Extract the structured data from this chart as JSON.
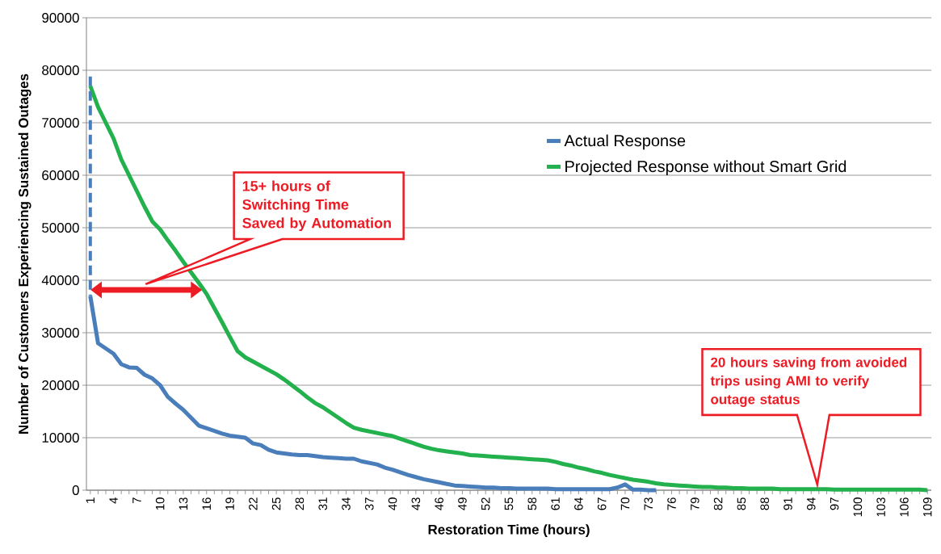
{
  "chart_data": {
    "type": "line",
    "xlabel": "Restoration Time (hours)",
    "ylabel": "Number of Customers Experiencing Sustained Outages",
    "x": [
      1,
      2,
      3,
      4,
      5,
      6,
      7,
      8,
      9,
      10,
      11,
      12,
      13,
      14,
      15,
      16,
      17,
      18,
      19,
      20,
      21,
      22,
      23,
      24,
      25,
      26,
      27,
      28,
      29,
      30,
      31,
      32,
      33,
      34,
      35,
      36,
      37,
      38,
      39,
      40,
      41,
      42,
      43,
      44,
      45,
      46,
      47,
      48,
      49,
      50,
      51,
      52,
      53,
      54,
      55,
      56,
      57,
      58,
      59,
      60,
      61,
      62,
      63,
      64,
      65,
      66,
      67,
      68,
      69,
      70,
      71,
      72,
      73,
      74,
      75,
      76,
      77,
      78,
      79,
      80,
      81,
      82,
      83,
      84,
      85,
      86,
      87,
      88,
      89,
      90,
      91,
      92,
      93,
      94,
      95,
      96,
      97,
      98,
      99,
      100,
      101,
      102,
      103,
      104,
      105,
      106,
      107,
      108,
      109
    ],
    "xlim": [
      0.5,
      109.5
    ],
    "xticks": [
      1,
      4,
      7,
      10,
      13,
      16,
      19,
      22,
      25,
      28,
      31,
      34,
      37,
      40,
      43,
      46,
      49,
      52,
      55,
      58,
      61,
      64,
      67,
      70,
      73,
      76,
      79,
      82,
      85,
      88,
      91,
      94,
      97,
      100,
      103,
      106,
      109
    ],
    "ylim": [
      0,
      90000
    ],
    "yticks": [
      0,
      10000,
      20000,
      30000,
      40000,
      50000,
      60000,
      70000,
      80000,
      90000
    ],
    "grid": "y",
    "legend": "right",
    "marker": "none",
    "series": [
      {
        "name": "Actual Response",
        "color": "#4a7ebb",
        "values": [
          37000,
          28000,
          27000,
          26000,
          24000,
          23400,
          23300,
          22000,
          21300,
          20000,
          17800,
          16500,
          15300,
          13800,
          12300,
          11800,
          11300,
          10800,
          10400,
          10200,
          10000,
          8900,
          8600,
          7700,
          7200,
          7000,
          6800,
          6700,
          6700,
          6500,
          6300,
          6200,
          6100,
          6000,
          6000,
          5500,
          5200,
          4900,
          4300,
          3900,
          3400,
          2900,
          2500,
          2100,
          1800,
          1500,
          1200,
          900,
          800,
          700,
          600,
          500,
          500,
          400,
          400,
          300,
          300,
          300,
          300,
          300,
          200,
          200,
          200,
          200,
          200,
          200,
          200,
          200,
          500,
          1100,
          100,
          100,
          0,
          0,
          null,
          null,
          null,
          null,
          null,
          null,
          null,
          null,
          null,
          null,
          null,
          null,
          null,
          null,
          null,
          null,
          null,
          null,
          null,
          null,
          null,
          null,
          null,
          null,
          null,
          null,
          null,
          null,
          null,
          null,
          null,
          null,
          null,
          null,
          null
        ]
      },
      {
        "name": "Projected Response without Smart Grid",
        "color": "#22b14c",
        "values": [
          77000,
          73000,
          70000,
          67000,
          63000,
          60000,
          57000,
          54000,
          51200,
          49700,
          47600,
          45600,
          43500,
          41500,
          39500,
          37400,
          34700,
          32000,
          29200,
          26500,
          25300,
          24500,
          23700,
          22900,
          22100,
          21100,
          20000,
          18900,
          17700,
          16600,
          15800,
          14800,
          13800,
          12800,
          11900,
          11500,
          11200,
          10900,
          10600,
          10300,
          9800,
          9300,
          8800,
          8300,
          7900,
          7600,
          7400,
          7200,
          7000,
          6700,
          6600,
          6500,
          6400,
          6300,
          6200,
          6100,
          6000,
          5900,
          5800,
          5700,
          5400,
          5000,
          4700,
          4300,
          4000,
          3600,
          3300,
          2900,
          2600,
          2300,
          2000,
          1800,
          1600,
          1300,
          1100,
          1000,
          900,
          800,
          700,
          600,
          600,
          500,
          500,
          400,
          400,
          300,
          300,
          300,
          300,
          200,
          200,
          200,
          200,
          200,
          200,
          200,
          100,
          100,
          100,
          100,
          100,
          100,
          100,
          100,
          100,
          100,
          100,
          100,
          0
        ]
      },
      {
        "color": "#4a7ebb",
        "line_style": "dashed",
        "x": [
          1,
          1
        ],
        "values": [
          78800,
          37000
        ]
      }
    ],
    "annotations": [
      "15+ hours of Switching Time Saved by Automation",
      "20 hours saving from avoided trips using AMI to verify outage status"
    ]
  }
}
